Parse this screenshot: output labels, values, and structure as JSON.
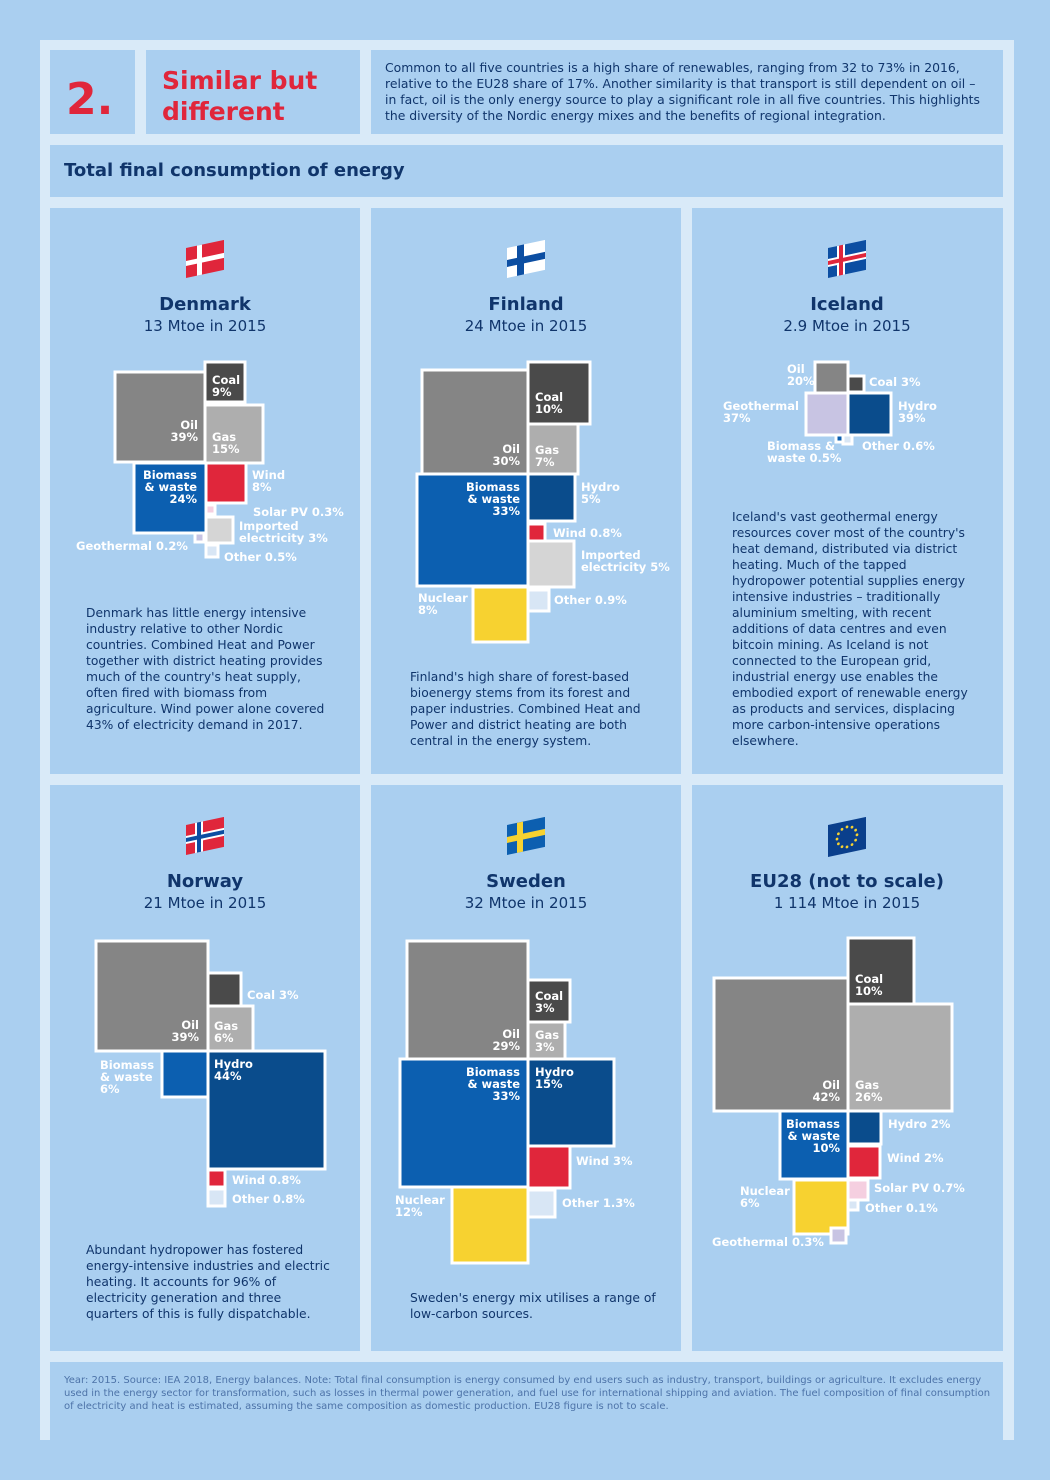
{
  "header": {
    "number": "2.",
    "title_line1": "Similar but",
    "title_line2": "different",
    "intro": "Common to all five countries is a high share of renewables, ranging from 32 to 73% in 2016, relative to the EU28 share of 17%. Another similarity is that transport is still dependent on oil – in fact, oil is the only energy source to play a significant role in all five countries. This highlights the diversity of the Nordic energy mixes and the benefits of regional integration."
  },
  "section_title": "Total final consumption of energy",
  "colors": {
    "oil": "#858585",
    "coal": "#4a4a4a",
    "gas": "#aeaeae",
    "biomass": "#0c5fb0",
    "wind": "#e0263b",
    "solar": "#f5cfe0",
    "imported": "#d5d5d5",
    "geothermal": "#c8c4e3",
    "hydro": "#0a4c8c",
    "nuclear": "#f7d230",
    "other": "#d8e6f5",
    "text": "#10356b",
    "accent": "#e0263b"
  },
  "countries": [
    {
      "name": "Denmark",
      "sub": "13 Mtoe in 2015",
      "flag": "denmark-flag-icon",
      "description": "Denmark has little energy intensive industry relative to other Nordic countries. Combined Heat and Power together with district heating provides much of the country's heat supply, often fired with biomass from agriculture. Wind power alone covered 43% of electricity demand in 2017."
    },
    {
      "name": "Finland",
      "sub": "24 Mtoe in 2015",
      "flag": "finland-flag-icon",
      "description": "Finland's high share of forest-based bioenergy stems from its forest and paper industries. Combined Heat and Power and district heating are both central in the energy system."
    },
    {
      "name": "Iceland",
      "sub": "2.9 Mtoe in 2015",
      "flag": "iceland-flag-icon",
      "description": "Iceland's vast geothermal energy resources cover most of the country's heat demand, distributed via district heating. Much of the tapped hydropower potential supplies energy intensive industries – traditionally aluminium smelting, with recent additions of data centres and even bitcoin mining. As Iceland is not connected to the European grid, industrial energy use enables the embodied export of renewable energy as products and services, displacing more carbon-intensive operations elsewhere."
    },
    {
      "name": "Norway",
      "sub": "21 Mtoe in 2015",
      "flag": "norway-flag-icon",
      "description": "Abundant hydropower has fostered energy-intensive industries and electric heating. It accounts for 96% of electricity generation and three quarters of this is fully dispatchable."
    },
    {
      "name": "Sweden",
      "sub": "32 Mtoe in 2015",
      "flag": "sweden-flag-icon",
      "description": "Sweden's energy mix utilises a range of low-carbon sources."
    },
    {
      "name": "EU28 (not to scale)",
      "sub": "1 114 Mtoe in 2015",
      "flag": "eu-flag-icon",
      "description": ""
    }
  ],
  "chart_data": [
    {
      "type": "treemap",
      "title": "Denmark",
      "unit": "%",
      "categories": [
        "Oil",
        "Coal",
        "Gas",
        "Biomass & waste",
        "Wind",
        "Solar PV",
        "Imported electricity",
        "Geothermal",
        "Other"
      ],
      "values": [
        39,
        9,
        15,
        24,
        8,
        0.3,
        3,
        0.2,
        0.5
      ],
      "labels": [
        "Oil|39%",
        "Coal|9%",
        "Gas|15%",
        "Biomass|& waste|24%",
        "Wind|8%",
        "Solar PV 0.3%",
        "Imported|electricity 3%",
        "Geothermal 0.2%",
        "Other 0.5%"
      ]
    },
    {
      "type": "treemap",
      "title": "Finland",
      "unit": "%",
      "categories": [
        "Oil",
        "Coal",
        "Gas",
        "Biomass & waste",
        "Hydro",
        "Wind",
        "Imported electricity",
        "Nuclear",
        "Other"
      ],
      "values": [
        30,
        10,
        7,
        33,
        5,
        0.8,
        5,
        8,
        0.9
      ],
      "labels": [
        "Oil|30%",
        "Coal|10%",
        "Gas|7%",
        "Biomass|& waste|33%",
        "Hydro|5%",
        "Wind 0.8%",
        "Imported|electricity 5%",
        "Nuclear|8%",
        "Other 0.9%"
      ]
    },
    {
      "type": "treemap",
      "title": "Iceland",
      "unit": "%",
      "categories": [
        "Oil",
        "Coal",
        "Geothermal",
        "Hydro",
        "Biomass & waste",
        "Other"
      ],
      "values": [
        20,
        3,
        37,
        39,
        0.5,
        0.6
      ],
      "labels": [
        "Oil|20%",
        "Coal 3%",
        "Geothermal|37%",
        "Hydro|39%",
        "Biomass &|waste 0.5%",
        "Other 0.6%"
      ]
    },
    {
      "type": "treemap",
      "title": "Norway",
      "unit": "%",
      "categories": [
        "Oil",
        "Coal",
        "Gas",
        "Biomass & waste",
        "Hydro",
        "Wind",
        "Other"
      ],
      "values": [
        39,
        3,
        6,
        6,
        44,
        0.8,
        0.8
      ],
      "labels": [
        "Oil|39%",
        "Coal 3%",
        "Gas|6%",
        "Biomass|& waste|6%",
        "Hydro|44%",
        "Wind 0.8%",
        "Other 0.8%"
      ]
    },
    {
      "type": "treemap",
      "title": "Sweden",
      "unit": "%",
      "categories": [
        "Oil",
        "Coal",
        "Gas",
        "Biomass & waste",
        "Hydro",
        "Wind",
        "Nuclear",
        "Other"
      ],
      "values": [
        29,
        3,
        3,
        33,
        15,
        3,
        12,
        1.3
      ],
      "labels": [
        "Oil|29%",
        "Coal|3%",
        "Gas|3%",
        "Biomass|& waste|33%",
        "Hydro|15%",
        "Wind 3%",
        "Nuclear|12%",
        "Other 1.3%"
      ]
    },
    {
      "type": "treemap",
      "title": "EU28 (not to scale)",
      "unit": "%",
      "categories": [
        "Oil",
        "Coal",
        "Gas",
        "Biomass & waste",
        "Hydro",
        "Wind",
        "Solar PV",
        "Nuclear",
        "Other",
        "Geothermal"
      ],
      "values": [
        42,
        10,
        26,
        10,
        2,
        2,
        0.7,
        6,
        0.1,
        0.3
      ],
      "labels": [
        "Oil|42%",
        "Coal|10%",
        "Gas|26%",
        "Biomass|& waste|10%",
        "Hydro 2%",
        "Wind 2%",
        "Solar PV 0.7%",
        "Nuclear|6%",
        "Other 0.1%",
        "Geothermal 0.3%"
      ]
    }
  ],
  "footnote": "Year: 2015. Source: IEA 2018, Energy balances. Note: Total final consumption is energy consumed by end users such as industry, transport, buildings or agriculture. It excludes energy used in the energy sector for transformation, such as losses in thermal power generation, and fuel use for international shipping and aviation. The fuel composition of final consumption of electricity and heat is estimated, assuming the same composition as domestic production. EU28 figure is not to scale."
}
